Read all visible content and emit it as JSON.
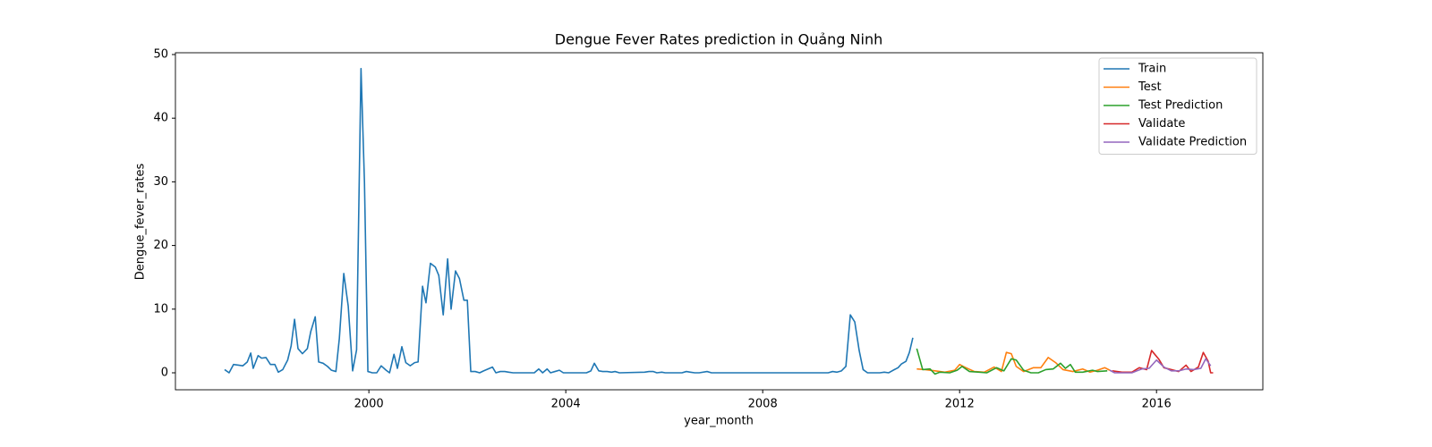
{
  "chart_data": {
    "type": "line",
    "title": "Dengue Fever Rates prediction in Quảng Ninh",
    "x_label": "year_month",
    "y_label": "Dengue_fever_rates",
    "xlim": [
      1996.07,
      2018.16
    ],
    "ylim": [
      -2.67,
      50.28
    ],
    "xticks": [
      2000,
      2004,
      2008,
      2012,
      2016
    ],
    "yticks": [
      0,
      10,
      20,
      30,
      40,
      50
    ],
    "grid": false,
    "legend": "upper right",
    "series": [
      {
        "name": "Train",
        "color": "#1f77b4",
        "x": [
          1997.07,
          1997.16,
          1997.25,
          1997.35,
          1997.44,
          1997.53,
          1997.6,
          1997.65,
          1997.75,
          1997.82,
          1997.91,
          1998.0,
          1998.09,
          1998.16,
          1998.25,
          1998.35,
          1998.42,
          1998.49,
          1998.56,
          1998.65,
          1998.75,
          1998.82,
          1998.91,
          1998.98,
          1999.07,
          1999.16,
          1999.24,
          1999.33,
          1999.4,
          1999.49,
          1999.58,
          1999.67,
          1999.75,
          1999.84,
          1999.91,
          1999.98,
          2000.07,
          2000.16,
          2000.25,
          2000.35,
          2000.42,
          2000.51,
          2000.58,
          2000.67,
          2000.75,
          2000.84,
          2000.93,
          2001.0,
          2001.09,
          2001.16,
          2001.25,
          2001.35,
          2001.42,
          2001.51,
          2001.6,
          2001.67,
          2001.76,
          2001.84,
          2001.93,
          2002.0,
          2002.07,
          2002.16,
          2002.25,
          2002.33,
          2002.42,
          2002.51,
          2002.58,
          2002.67,
          2002.76,
          2002.84,
          2002.93,
          2003.36,
          2003.45,
          2003.53,
          2003.62,
          2003.69,
          2003.78,
          2003.87,
          2003.95,
          2004.42,
          2004.51,
          2004.58,
          2004.67,
          2004.75,
          2004.84,
          2004.93,
          2005.0,
          2005.09,
          2005.6,
          2005.69,
          2005.78,
          2005.85,
          2005.95,
          2006.02,
          2006.36,
          2006.45,
          2006.53,
          2006.62,
          2006.71,
          2006.87,
          2006.96,
          2009.33,
          2009.42,
          2009.51,
          2009.6,
          2009.69,
          2009.78,
          2009.87,
          2009.96,
          2010.04,
          2010.13,
          2010.22,
          2010.38,
          2010.47,
          2010.56,
          2010.65,
          2010.75,
          2010.82,
          2010.91,
          2010.98,
          2011.05
        ],
        "values": [
          0.5,
          0,
          1.3,
          1.2,
          1.1,
          1.7,
          3.1,
          0.7,
          2.7,
          2.3,
          2.4,
          1.3,
          1.3,
          0.1,
          0.5,
          2.0,
          4.2,
          8.4,
          3.8,
          3.0,
          3.8,
          6.5,
          8.8,
          1.7,
          1.5,
          1.0,
          0.4,
          0.2,
          5.4,
          15.6,
          10.5,
          0.3,
          3.6,
          47.8,
          30,
          0.2,
          0,
          0,
          1.1,
          0.4,
          0,
          2.9,
          0.7,
          4.1,
          1.6,
          1.1,
          1.6,
          1.7,
          13.6,
          11,
          17.2,
          16.6,
          15.3,
          9.1,
          17.9,
          10,
          16,
          14.8,
          11.4,
          11.4,
          0.2,
          0.2,
          0,
          0.3,
          0.6,
          0.9,
          0,
          0.2,
          0.2,
          0.1,
          0,
          0,
          0.6,
          0,
          0.6,
          0,
          0.2,
          0.4,
          0,
          0,
          0.3,
          1.5,
          0.3,
          0.2,
          0.2,
          0.1,
          0.2,
          0,
          0.1,
          0.2,
          0.2,
          0,
          0.1,
          0,
          0,
          0.2,
          0.1,
          0,
          0,
          0.2,
          0,
          0,
          0.2,
          0.1,
          0.3,
          1.0,
          9.1,
          8.0,
          3.5,
          0.5,
          0,
          0,
          0,
          0.1,
          0,
          0.4,
          0.8,
          1.4,
          1.8,
          3.2,
          5.5
        ]
      },
      {
        "name": "Test",
        "color": "#ff7f0e",
        "x": [
          2011.13,
          2011.3,
          2011.5,
          2011.7,
          2011.9,
          2012.0,
          2012.1,
          2012.3,
          2012.5,
          2012.7,
          2012.85,
          2012.95,
          2013.05,
          2013.15,
          2013.3,
          2013.5,
          2013.65,
          2013.8,
          2013.95,
          2014.1,
          2014.3,
          2014.5,
          2014.65,
          2014.8,
          2014.95,
          2015.05
        ],
        "values": [
          0.6,
          0.5,
          0.3,
          0.1,
          0.4,
          1.3,
          0.9,
          0.2,
          0.1,
          0.9,
          0.2,
          3.2,
          3.0,
          1.0,
          0.2,
          0.8,
          0.8,
          2.4,
          1.6,
          0.5,
          0.2,
          0.6,
          0.1,
          0.4,
          0.8,
          0.4
        ]
      },
      {
        "name": "Test Prediction",
        "color": "#2ca02c",
        "x": [
          2011.13,
          2011.25,
          2011.4,
          2011.5,
          2011.6,
          2011.8,
          2011.95,
          2012.05,
          2012.2,
          2012.4,
          2012.55,
          2012.75,
          2012.9,
          2013.05,
          2013.15,
          2013.3,
          2013.45,
          2013.6,
          2013.75,
          2013.9,
          2014.05,
          2014.15,
          2014.25,
          2014.35,
          2014.5,
          2014.7,
          2014.8,
          2015.0
        ],
        "values": [
          3.8,
          0.5,
          0.6,
          -0.2,
          0.1,
          0,
          0.4,
          1.0,
          0.2,
          0.1,
          0,
          0.8,
          0.3,
          2.2,
          2.0,
          0.4,
          0,
          0,
          0.5,
          0.6,
          1.5,
          0.7,
          1.3,
          0.1,
          0.1,
          0.4,
          0.2,
          0.3
        ]
      },
      {
        "name": "Validate",
        "color": "#d62728",
        "x": [
          2015.1,
          2015.3,
          2015.5,
          2015.65,
          2015.8,
          2015.9,
          2016.05,
          2016.15,
          2016.3,
          2016.45,
          2016.6,
          2016.7,
          2016.85,
          2016.95,
          2017.05,
          2017.1,
          2017.15
        ],
        "values": [
          0.3,
          0.1,
          0.1,
          0.8,
          0.5,
          3.5,
          2.1,
          0.8,
          0.5,
          0.2,
          1.2,
          0.2,
          0.9,
          3.2,
          1.8,
          0,
          0
        ]
      },
      {
        "name": "Validate Prediction",
        "color": "#9467bd",
        "x": [
          2015.05,
          2015.15,
          2015.35,
          2015.5,
          2015.7,
          2015.85,
          2016.0,
          2016.15,
          2016.3,
          2016.45,
          2016.6,
          2016.75,
          2016.9,
          2017.0,
          2017.1
        ],
        "values": [
          0.4,
          0,
          0,
          0,
          0.6,
          0.7,
          2.0,
          0.9,
          0.3,
          0.3,
          0.6,
          0.5,
          0.7,
          2.2,
          1.1
        ]
      }
    ]
  }
}
